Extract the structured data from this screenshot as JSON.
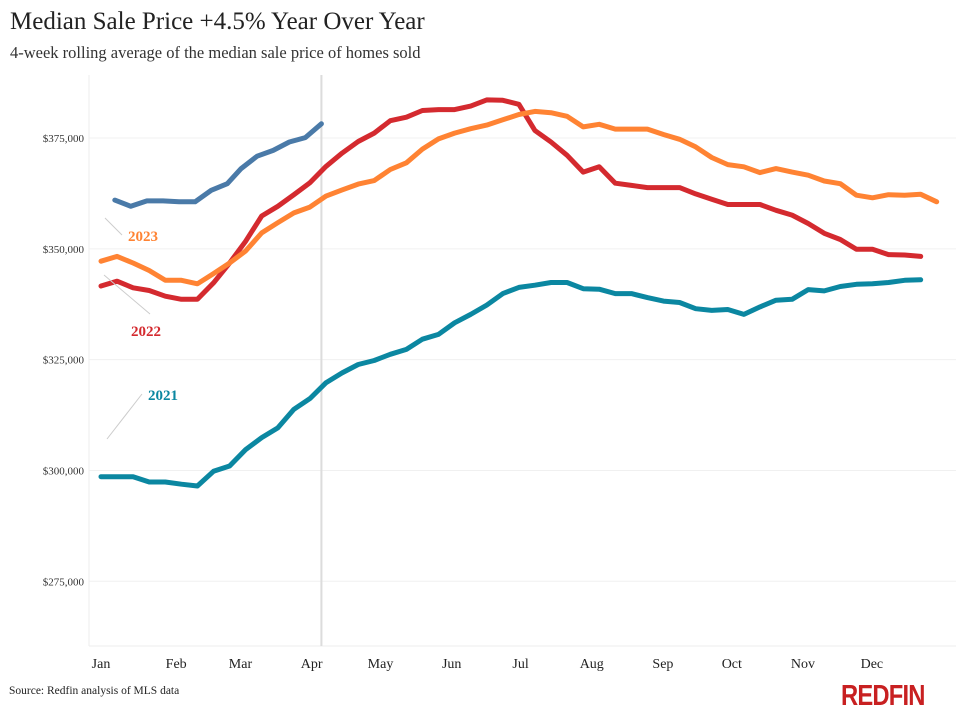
{
  "title": "Median Sale Price +4.5% Year Over Year",
  "subtitle": "4-week rolling average of the median sale price of homes sold",
  "source": "Source: Redfin analysis of MLS data",
  "logo_text": "REDFIN",
  "chart_data": {
    "type": "line",
    "title": "Median Sale Price +4.5% Year Over Year",
    "subtitle": "4-week rolling average of the median sale price of homes sold",
    "xlabel": "",
    "ylabel": "",
    "ylim": [
      260000,
      389000
    ],
    "yticks": [
      275000,
      300000,
      325000,
      350000,
      375000
    ],
    "ytick_labels": [
      "$275,000",
      "$300,000",
      "$325,000",
      "$350,000",
      "$375,000"
    ],
    "xtick_labels": [
      "Jan",
      "Feb",
      "Mar",
      "Apr",
      "May",
      "Jun",
      "Jul",
      "Aug",
      "Sep",
      "Oct",
      "Nov",
      "Dec"
    ],
    "grid": "horizontal",
    "vertical_marker": "04-07",
    "legend": "inline labels at left",
    "series": [
      {
        "name": "2021",
        "color": "#0b87a1",
        "x": [
          "01-01",
          "01-08",
          "01-15",
          "01-22",
          "01-29",
          "02-05",
          "02-12",
          "02-19",
          "02-26",
          "03-05",
          "03-12",
          "03-19",
          "03-26",
          "04-02",
          "04-09",
          "04-16",
          "04-23",
          "04-30",
          "05-07",
          "05-14",
          "05-21",
          "05-28",
          "06-04",
          "06-11",
          "06-18",
          "06-25",
          "07-02",
          "07-09",
          "07-16",
          "07-23",
          "07-30",
          "08-06",
          "08-13",
          "08-20",
          "08-27",
          "09-03",
          "09-10",
          "09-17",
          "09-24",
          "10-01",
          "10-08",
          "10-15",
          "10-22",
          "10-29",
          "11-05",
          "11-12",
          "11-19",
          "11-26",
          "12-03",
          "12-10",
          "12-17",
          "12-24"
        ],
        "values": [
          298600,
          298600,
          298600,
          297400,
          297400,
          296900,
          296500,
          299800,
          301000,
          304700,
          307400,
          309600,
          313800,
          316200,
          319800,
          322000,
          323900,
          324800,
          326200,
          327300,
          329600,
          330700,
          333300,
          335200,
          337300,
          339900,
          341300,
          341800,
          342400,
          342400,
          341000,
          340900,
          339900,
          339900,
          339000,
          338200,
          337900,
          336500,
          336100,
          336300,
          335200,
          336900,
          338400,
          338600,
          340800,
          340500,
          341500,
          342000,
          342100,
          342400,
          342900,
          343000
        ]
      },
      {
        "name": "2022",
        "color": "#d42a2f",
        "x": [
          "01-01",
          "01-08",
          "01-15",
          "01-22",
          "01-29",
          "02-05",
          "02-12",
          "02-19",
          "02-26",
          "03-05",
          "03-12",
          "03-19",
          "03-26",
          "04-02",
          "04-09",
          "04-16",
          "04-23",
          "04-30",
          "05-07",
          "05-14",
          "05-21",
          "05-28",
          "06-04",
          "06-11",
          "06-18",
          "06-25",
          "07-02",
          "07-09",
          "07-16",
          "07-23",
          "07-30",
          "08-06",
          "08-13",
          "08-20",
          "08-27",
          "09-03",
          "09-10",
          "09-17",
          "09-24",
          "10-01",
          "10-08",
          "10-15",
          "10-22",
          "10-29",
          "11-05",
          "11-12",
          "11-19",
          "11-26",
          "12-03",
          "12-10",
          "12-17",
          "12-24"
        ],
        "values": [
          341600,
          342700,
          341200,
          340600,
          339300,
          338600,
          338600,
          342300,
          346800,
          351700,
          357400,
          359600,
          362200,
          364900,
          368600,
          371600,
          374200,
          376100,
          378900,
          379700,
          381200,
          381400,
          381400,
          382200,
          383600,
          383500,
          382600,
          376700,
          374100,
          371100,
          367300,
          368500,
          364800,
          364300,
          363800,
          363800,
          363800,
          362400,
          361200,
          360000,
          360000,
          360000,
          358700,
          357600,
          355700,
          353500,
          352100,
          349900,
          349900,
          348700,
          348600,
          348300
        ]
      },
      {
        "name": "2023",
        "color": "#ff8333",
        "x": [
          "01-01",
          "01-08",
          "01-15",
          "01-22",
          "01-29",
          "02-05",
          "02-12",
          "02-19",
          "02-26",
          "03-05",
          "03-12",
          "03-19",
          "03-26",
          "04-02",
          "04-09",
          "04-16",
          "04-23",
          "04-30",
          "05-07",
          "05-14",
          "05-21",
          "05-28",
          "06-04",
          "06-11",
          "06-18",
          "06-25",
          "07-02",
          "07-09",
          "07-16",
          "07-23",
          "07-30",
          "08-06",
          "08-13",
          "08-20",
          "08-27",
          "09-03",
          "09-10",
          "09-17",
          "09-24",
          "10-01",
          "10-08",
          "10-15",
          "10-22",
          "10-29",
          "11-05",
          "11-12",
          "11-19",
          "11-26",
          "12-03",
          "12-10",
          "12-17",
          "12-24",
          "12-31"
        ],
        "values": [
          347200,
          348300,
          346800,
          345100,
          342900,
          342900,
          342100,
          344400,
          346800,
          349500,
          353600,
          355900,
          358100,
          359400,
          361900,
          363300,
          364600,
          365400,
          367900,
          369400,
          372500,
          374800,
          376100,
          377100,
          377900,
          379100,
          380300,
          381000,
          380700,
          379900,
          377500,
          378100,
          377000,
          377000,
          377000,
          375800,
          374700,
          373000,
          370600,
          369000,
          368500,
          367200,
          368100,
          367300,
          366600,
          365300,
          364700,
          362100,
          361500,
          362200,
          362100,
          362300,
          360600
        ]
      },
      {
        "color": "#4a7aa8",
        "x": [
          "01-07",
          "01-14",
          "01-21",
          "01-28",
          "02-04",
          "02-11",
          "02-18",
          "02-25",
          "03-03",
          "03-10",
          "03-17",
          "03-24",
          "03-31",
          "04-07"
        ],
        "values": [
          361000,
          359600,
          360800,
          360800,
          360600,
          360600,
          363200,
          364700,
          368100,
          370900,
          372200,
          374100,
          375100,
          378200
        ]
      }
    ]
  }
}
